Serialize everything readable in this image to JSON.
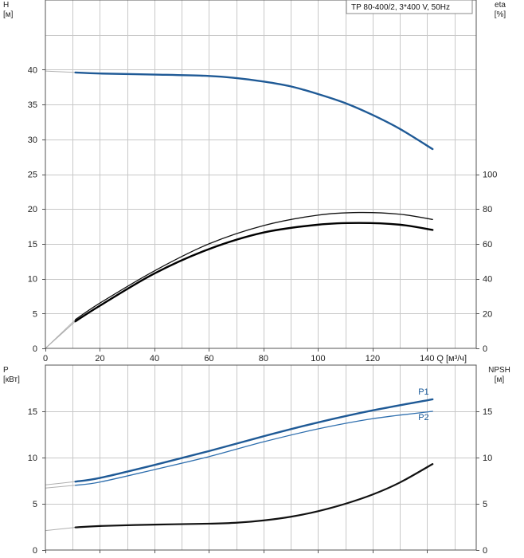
{
  "chart_data": [
    {
      "type": "line",
      "panel": "head-efficiency",
      "title": "TP 80-400/2, 3*400 V, 50Hz",
      "xlabel": "Q [м³/ч]",
      "ylabel": "H\n[м]",
      "y2label": "eta\n[%]",
      "xlim": [
        0,
        158
      ],
      "ylim": [
        0,
        50
      ],
      "y2lim": [
        0,
        200
      ],
      "x_ticks": [
        0,
        20,
        40,
        60,
        80,
        100,
        120,
        140
      ],
      "y_ticks": [
        0,
        5,
        10,
        15,
        20,
        25,
        30,
        35,
        40
      ],
      "y2_ticks": [
        0,
        20,
        40,
        60,
        80,
        100
      ],
      "grid": true,
      "series": [
        {
          "axis": "left",
          "color": "#1f5a96",
          "points": [
            [
              0,
              39.8
            ],
            [
              11,
              39.6
            ],
            [
              20,
              39.45
            ],
            [
              40,
              39.3
            ],
            [
              60,
              39.1
            ],
            [
              70,
              38.8
            ],
            [
              80,
              38.3
            ],
            [
              90,
              37.6
            ],
            [
              100,
              36.5
            ],
            [
              110,
              35.2
            ],
            [
              120,
              33.5
            ],
            [
              130,
              31.5
            ],
            [
              142,
              28.6
            ]
          ],
          "extrapolated_to": 11
        },
        {
          "axis": "right",
          "color": "#111111",
          "points": [
            [
              0,
              0
            ],
            [
              11,
              16.5
            ],
            [
              20,
              26
            ],
            [
              40,
              44.5
            ],
            [
              60,
              60
            ],
            [
              80,
              70.5
            ],
            [
              100,
              76.5
            ],
            [
              115,
              78
            ],
            [
              130,
              77
            ],
            [
              142,
              74
            ]
          ],
          "extrapolated_to": 11
        },
        {
          "axis": "right",
          "color": "#000000",
          "points": [
            [
              0,
              0
            ],
            [
              11,
              15.5
            ],
            [
              20,
              24.5
            ],
            [
              40,
              43
            ],
            [
              60,
              57
            ],
            [
              80,
              66.5
            ],
            [
              100,
              71
            ],
            [
              115,
              72
            ],
            [
              130,
              71
            ],
            [
              142,
              68
            ]
          ],
          "extrapolated_to": 11
        }
      ]
    },
    {
      "type": "line",
      "panel": "power-npsh",
      "xlabel": "",
      "ylabel": "P\n[кВт]",
      "y2label": "NPSH\n[м]",
      "xlim": [
        0,
        158
      ],
      "ylim": [
        0,
        20
      ],
      "y2lim": [
        0,
        20
      ],
      "y_ticks": [
        0,
        5,
        10,
        15
      ],
      "y2_ticks": [
        0,
        5,
        10,
        15
      ],
      "grid": true,
      "series": [
        {
          "name": "P1",
          "axis": "left",
          "color": "#1f5a96",
          "points": [
            [
              0,
              7.05
            ],
            [
              11,
              7.4
            ],
            [
              20,
              7.8
            ],
            [
              40,
              9.2
            ],
            [
              60,
              10.7
            ],
            [
              80,
              12.3
            ],
            [
              100,
              13.8
            ],
            [
              120,
              15.1
            ],
            [
              142,
              16.3
            ]
          ],
          "extrapolated_to": 11
        },
        {
          "name": "P2",
          "axis": "left",
          "color": "#2f6fae",
          "points": [
            [
              0,
              6.7
            ],
            [
              11,
              7.0
            ],
            [
              20,
              7.35
            ],
            [
              40,
              8.7
            ],
            [
              60,
              10.1
            ],
            [
              80,
              11.7
            ],
            [
              100,
              13.1
            ],
            [
              120,
              14.2
            ],
            [
              142,
              15.0
            ]
          ],
          "extrapolated_to": 11
        },
        {
          "axis": "right",
          "color": "#111111",
          "points": [
            [
              0,
              2.1
            ],
            [
              11,
              2.45
            ],
            [
              20,
              2.6
            ],
            [
              40,
              2.75
            ],
            [
              60,
              2.85
            ],
            [
              70,
              2.95
            ],
            [
              80,
              3.2
            ],
            [
              90,
              3.6
            ],
            [
              100,
              4.2
            ],
            [
              110,
              5.0
            ],
            [
              120,
              6.0
            ],
            [
              130,
              7.3
            ],
            [
              142,
              9.3
            ]
          ],
          "extrapolated_to": 11
        }
      ]
    }
  ]
}
